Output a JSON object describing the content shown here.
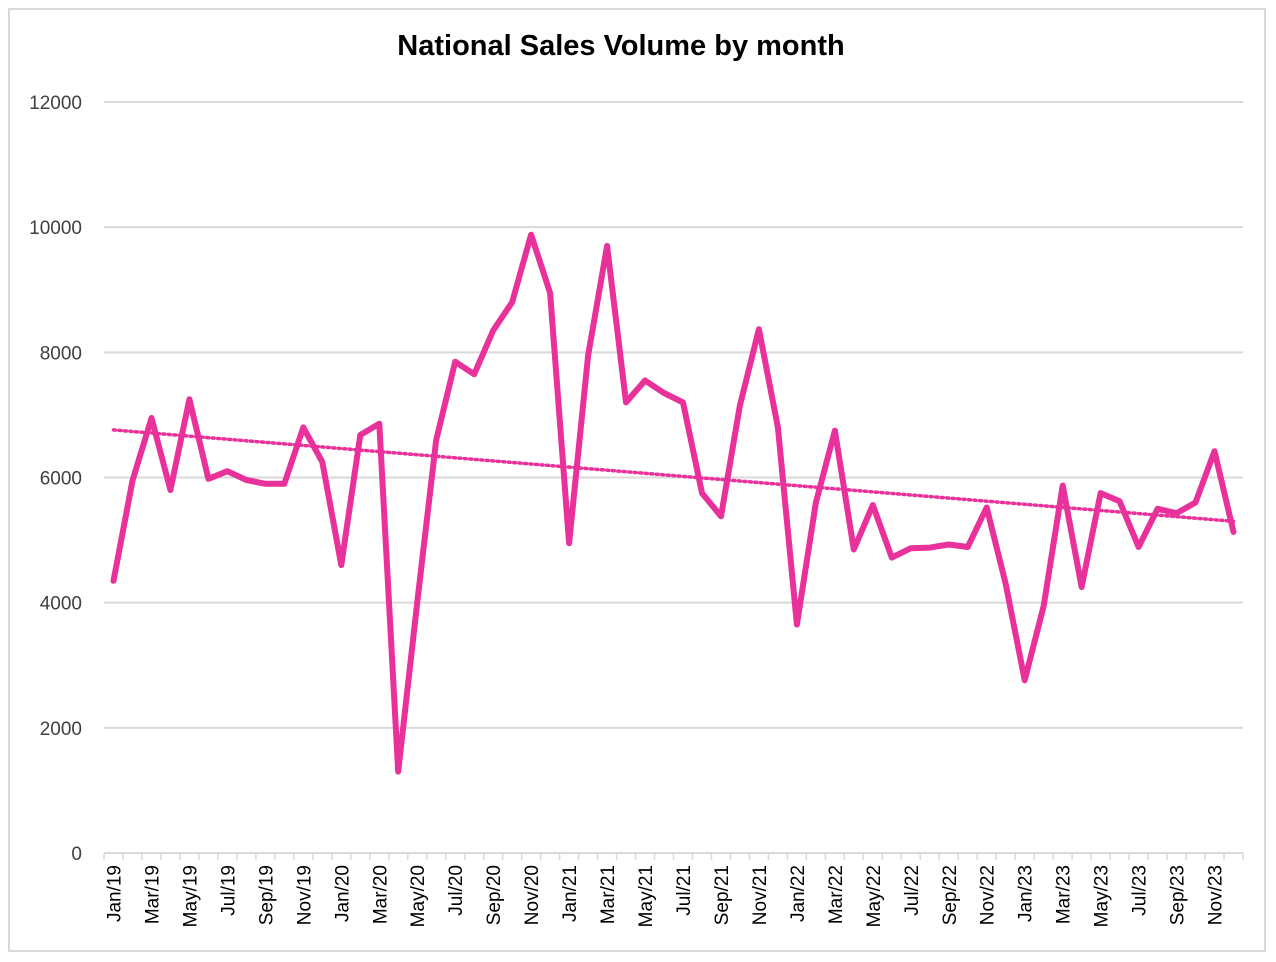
{
  "chart_data": {
    "type": "line",
    "title": "National Sales Volume by month",
    "xlabel": "",
    "ylabel": "",
    "ylim": [
      0,
      12000
    ],
    "yticks": [
      0,
      2000,
      4000,
      6000,
      8000,
      10000,
      12000
    ],
    "grid": true,
    "legend": "none",
    "xtick_labels": [
      "Jan/19",
      "Mar/19",
      "May/19",
      "Jul/19",
      "Sep/19",
      "Nov/19",
      "Jan/20",
      "Mar/20",
      "May/20",
      "Jul/20",
      "Sep/20",
      "Nov/20",
      "Jan/21",
      "Mar/21",
      "May/21",
      "Jul/21",
      "Sep/21",
      "Nov/21",
      "Jan/22",
      "Mar/22",
      "May/22",
      "Jul/22",
      "Sep/22",
      "Nov/22",
      "Jan/23",
      "Mar/23",
      "May/23",
      "Jul/23",
      "Sep/23",
      "Nov/23"
    ],
    "series": [
      {
        "name": "Sales Volume",
        "color": "#e8319a",
        "values": [
          4350,
          5950,
          6950,
          5800,
          7250,
          5980,
          6100,
          5960,
          5900,
          5900,
          6800,
          6250,
          4600,
          6680,
          6860,
          1300,
          4000,
          6600,
          7850,
          7650,
          8350,
          8800,
          9880,
          8950,
          4950,
          7950,
          9700,
          7200,
          7550,
          7350,
          7200,
          5750,
          5380,
          7150,
          8370,
          6800,
          3650,
          5600,
          6750,
          4850,
          5560,
          4720,
          4870,
          4880,
          4930,
          4890,
          5520,
          4300,
          2760,
          3950,
          5870,
          4250,
          5750,
          5620,
          4890,
          5500,
          5430,
          5600,
          6420,
          5130
        ]
      },
      {
        "name": "Linear trend",
        "color": "#e8319a",
        "style": "dotted",
        "start": 6760,
        "end": 5300
      }
    ]
  }
}
